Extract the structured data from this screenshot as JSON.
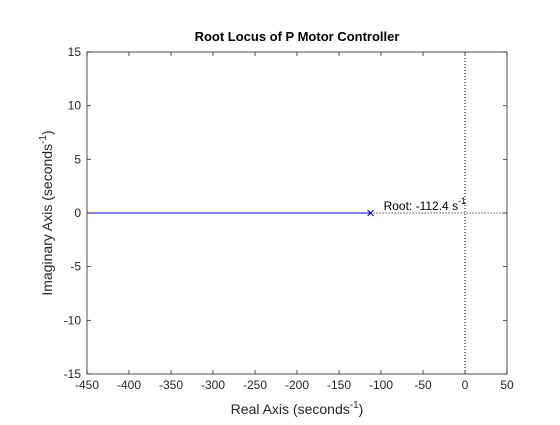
{
  "chart_data": {
    "type": "line",
    "title": "Root Locus of P Motor Controller",
    "xlabel": {
      "main": "Real Axis (seconds",
      "sup": "-1",
      "close": ")"
    },
    "ylabel": {
      "main": "Imaginary Axis (seconds",
      "sup": "-1",
      "close": ")"
    },
    "xlim": [
      -450,
      50
    ],
    "ylim": [
      -15,
      15
    ],
    "xticks": [
      -450,
      -400,
      -350,
      -300,
      -250,
      -200,
      -150,
      -100,
      -50,
      0,
      50
    ],
    "yticks": [
      -15,
      -10,
      -5,
      0,
      5,
      10,
      15
    ],
    "grid": false,
    "series": [
      {
        "x": [
          -112.4,
          -450
        ],
        "y": [
          0,
          0
        ],
        "color": "#0000ff"
      }
    ],
    "pole": {
      "x": -112.4,
      "y": 0,
      "marker": "x",
      "color": "#0000ff"
    },
    "reference_lines": {
      "vertical_x": 0,
      "horizontal_y": 0,
      "style": "dotted",
      "color": "#000000"
    },
    "annotation": {
      "main": "Root: -112.4 s",
      "sup": "-1",
      "x": -112.4,
      "y": 0
    }
  }
}
